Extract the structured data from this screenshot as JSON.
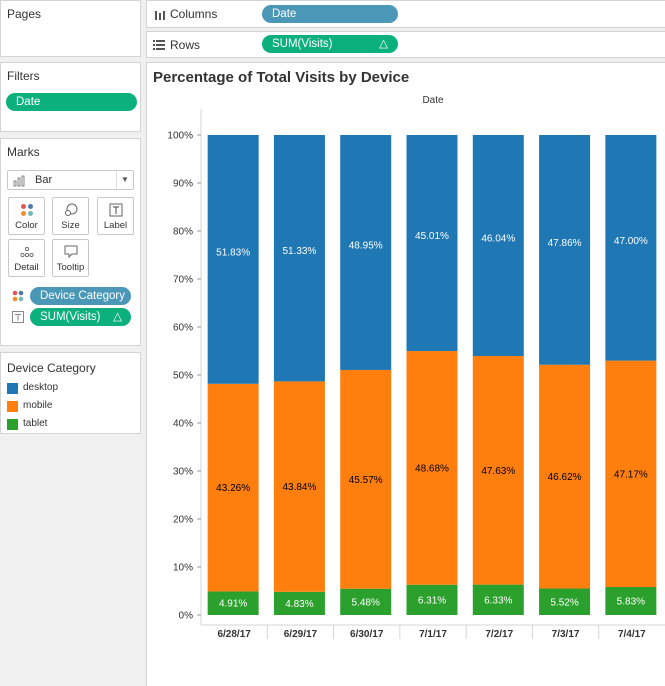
{
  "sidebar": {
    "pages_title": "Pages",
    "filters_title": "Filters",
    "filters": [
      "Date"
    ],
    "marks_title": "Marks",
    "mark_type": "Bar",
    "mark_buttons": [
      "Color",
      "Size",
      "Label",
      "Detail",
      "Tooltip"
    ],
    "mark_fields": [
      {
        "icon": "color-dots-icon",
        "label": "Device Category",
        "color": "#4b97b8"
      },
      {
        "icon": "text-icon",
        "label": "SUM(Visits)",
        "delta": "△",
        "color": "#0bb07d"
      }
    ],
    "legend_title": "Device Category",
    "legend": [
      {
        "label": "desktop",
        "color": "#1f77b4"
      },
      {
        "label": "mobile",
        "color": "#ff7f0e"
      },
      {
        "label": "tablet",
        "color": "#2ca02c"
      }
    ]
  },
  "shelves": {
    "columns_label": "Columns",
    "columns_pill": "Date",
    "rows_label": "Rows",
    "rows_pill": "SUM(Visits)",
    "rows_delta": "△"
  },
  "view": {
    "title": "Percentage of Total Visits by Device",
    "header": "Date"
  },
  "chart_data": {
    "type": "bar",
    "stacked": true,
    "title": "Percentage of Total Visits by Device",
    "xlabel": "Date",
    "ylabel": "",
    "categories": [
      "6/28/17",
      "6/29/17",
      "6/30/17",
      "7/1/17",
      "7/2/17",
      "7/3/17",
      "7/4/17"
    ],
    "yticks": [
      "0%",
      "10%",
      "20%",
      "30%",
      "40%",
      "50%",
      "60%",
      "70%",
      "80%",
      "90%",
      "100%"
    ],
    "ylim": [
      0,
      100
    ],
    "series": [
      {
        "name": "tablet",
        "color": "#2ca02c",
        "values": [
          4.91,
          4.83,
          5.48,
          6.31,
          6.33,
          5.52,
          5.83
        ],
        "labels": [
          "4.91%",
          "4.83%",
          "5.48%",
          "6.31%",
          "6.33%",
          "5.52%",
          "5.83%"
        ],
        "label_color": "#ffffff"
      },
      {
        "name": "mobile",
        "color": "#ff7f0e",
        "values": [
          43.26,
          43.84,
          45.57,
          48.68,
          47.63,
          46.62,
          47.17
        ],
        "labels": [
          "43.26%",
          "43.84%",
          "45.57%",
          "48.68%",
          "47.63%",
          "46.62%",
          "47.17%"
        ],
        "label_color": "#000000"
      },
      {
        "name": "desktop",
        "color": "#1f77b4",
        "values": [
          51.83,
          51.33,
          48.95,
          45.01,
          46.04,
          47.86,
          47.0
        ],
        "labels": [
          "51.83%",
          "51.33%",
          "48.95%",
          "45.01%",
          "46.04%",
          "47.86%",
          "47.00%"
        ],
        "label_color": "#ffffff"
      }
    ]
  }
}
